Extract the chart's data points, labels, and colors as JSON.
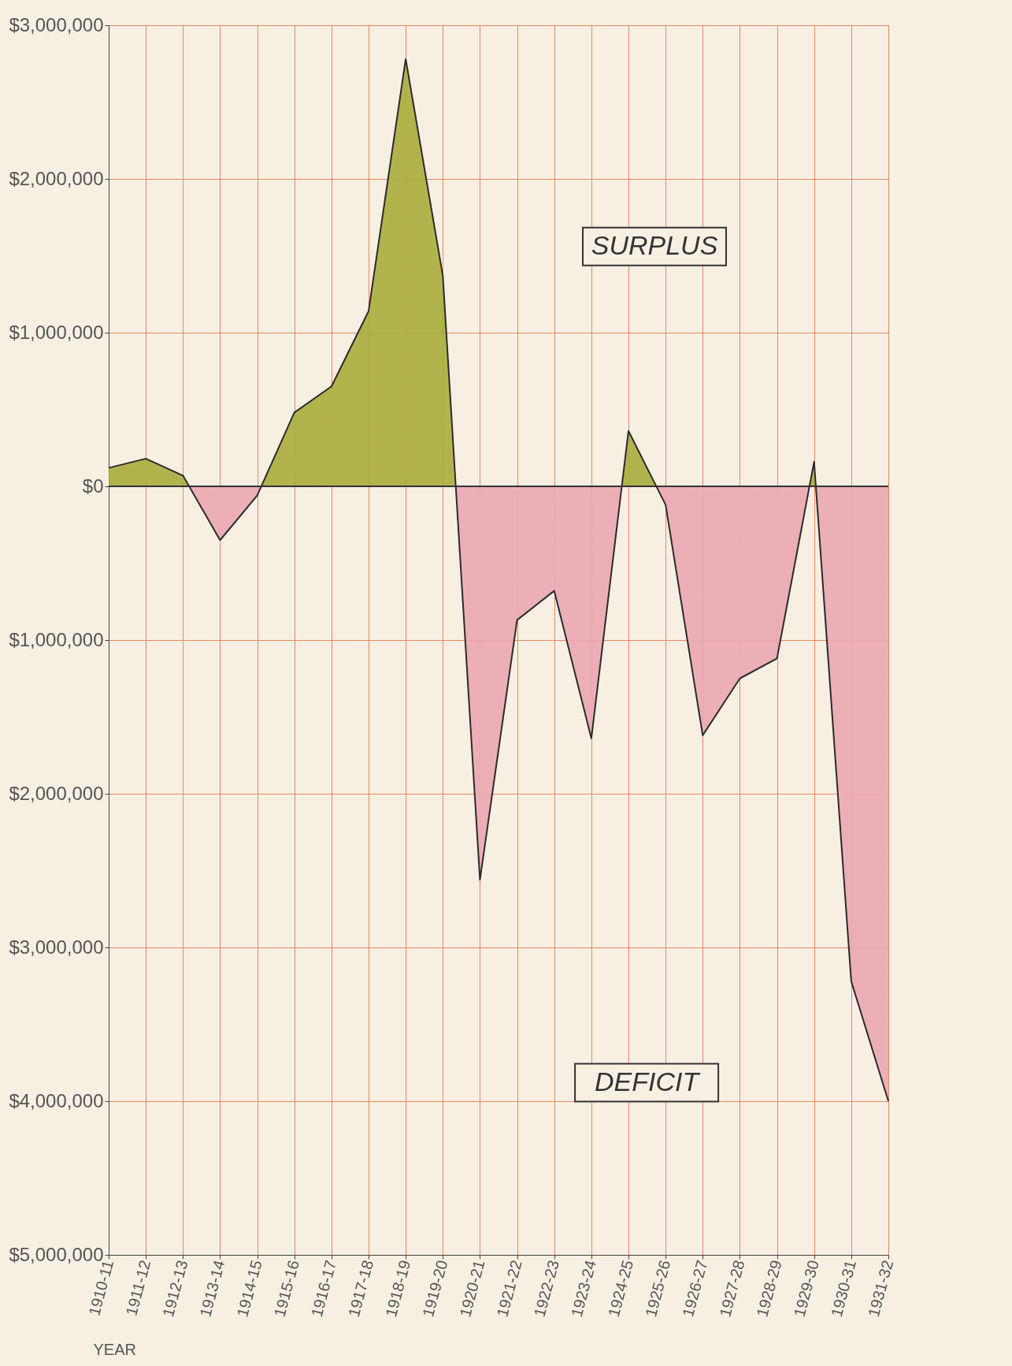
{
  "chart_data": {
    "type": "area",
    "xlabel": "YEAR",
    "categories": [
      "1910-11",
      "1911-12",
      "1912-13",
      "1913-14",
      "1914-15",
      "1915-16",
      "1916-17",
      "1917-18",
      "1918-19",
      "1919-20",
      "1920-21",
      "1921-22",
      "1922-23",
      "1923-24",
      "1924-25",
      "1925-26",
      "1926-27",
      "1927-28",
      "1928-29",
      "1929-30",
      "1930-31",
      "1931-32"
    ],
    "series": [
      {
        "color": "#2b2b2b",
        "colors": [
          "#a9ad3c",
          "#a9ad3c",
          "#a9ad3c",
          "#eba7b2",
          "#eba7b2",
          "#a9ad3c",
          "#a9ad3c",
          "#a9ad3c",
          "#a9ad3c",
          "#a9ad3c",
          "#eba7b2",
          "#eba7b2",
          "#eba7b2",
          "#eba7b2",
          "#a9ad3c",
          "#eba7b2",
          "#eba7b2",
          "#eba7b2",
          "#eba7b2",
          "#a9ad3c",
          "#eba7b2",
          "#eba7b2"
        ],
        "values": [
          120000,
          180000,
          70000,
          -350000,
          -60000,
          480000,
          650000,
          1140000,
          2780000,
          1370000,
          -2560000,
          -870000,
          -680000,
          -1640000,
          360000,
          -120000,
          -1620000,
          -1250000,
          -1120000,
          160000,
          -3220000,
          -4000000
        ]
      }
    ],
    "ylim": [
      -5000000,
      3000000
    ],
    "yticks": [
      {
        "value": 3000000,
        "label": "$3,000,000"
      },
      {
        "value": 2000000,
        "label": "$2,000,000"
      },
      {
        "value": 1000000,
        "label": "$1,000,000"
      },
      {
        "value": 0,
        "label": "$0"
      },
      {
        "value": -1000000,
        "label": "$1,000,000"
      },
      {
        "value": -2000000,
        "label": "$2,000,000"
      },
      {
        "value": -3000000,
        "label": "$3,000,000"
      },
      {
        "value": -4000000,
        "label": "$4,000,000"
      },
      {
        "value": -5000000,
        "label": "$5,000,000"
      }
    ],
    "grid": true,
    "annotations": [
      "SURPLUS",
      "DEFICIT"
    ]
  }
}
